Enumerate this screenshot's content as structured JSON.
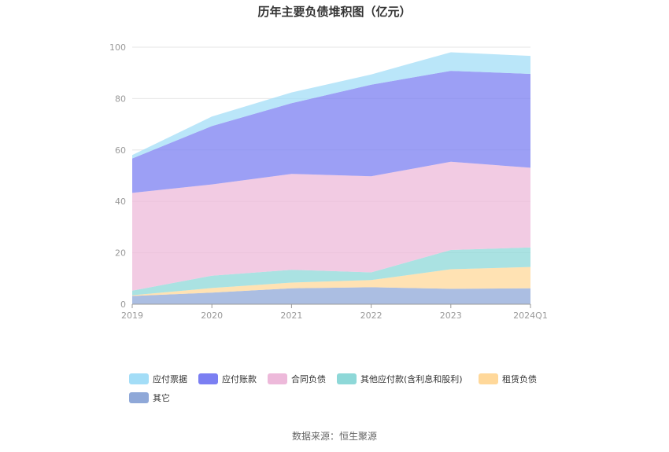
{
  "chart_data": {
    "type": "area",
    "stacked": true,
    "title": "历年主要负债堆积图（亿元）",
    "categories": [
      "2019",
      "2020",
      "2021",
      "2022",
      "2023",
      "2024Q1"
    ],
    "ylim": [
      0,
      100
    ],
    "yticks": [
      0,
      20,
      40,
      60,
      80,
      100
    ],
    "grid": true,
    "legend_position": "bottom",
    "series": [
      {
        "name": "其它",
        "color": "#8FA8D8",
        "values": [
          3.2,
          4.5,
          6.2,
          6.6,
          6.0,
          6.2
        ]
      },
      {
        "name": "租赁负债",
        "color": "#FFD89A",
        "values": [
          0.3,
          1.8,
          2.2,
          2.8,
          7.6,
          8.3
        ]
      },
      {
        "name": "其他应付款(含利息和股利)",
        "color": "#8ED8D8",
        "values": [
          1.8,
          4.8,
          5.0,
          3.0,
          7.5,
          7.6
        ]
      },
      {
        "name": "合同负债",
        "color": "#EDB9DA",
        "values": [
          38.0,
          35.5,
          37.3,
          37.4,
          34.3,
          31.0
        ]
      },
      {
        "name": "应付账款",
        "color": "#7B7FF2",
        "values": [
          13.4,
          22.7,
          27.5,
          35.6,
          35.4,
          36.5
        ]
      },
      {
        "name": "应付票据",
        "color": "#A3DDF7",
        "values": [
          1.3,
          3.7,
          4.2,
          4.0,
          7.2,
          7.0
        ]
      }
    ],
    "legend_order": [
      "应付票据",
      "应付账款",
      "合同负债",
      "其他应付款(含利息和股利)",
      "租赁负债",
      "其它"
    ]
  },
  "source": "数据来源：恒生聚源"
}
